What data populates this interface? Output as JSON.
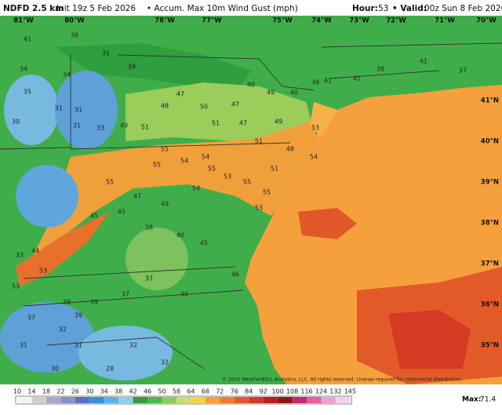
{
  "header": {
    "model": "NDFD 2.5 km",
    "init": "Init 19z 5 Feb 2026",
    "field": "• Accum. Max 10m Wind Gust (mph)",
    "hour_label": "Hour:",
    "hour": 53,
    "valid_label": "• Valid:",
    "valid": "00z Sun 8 Feb 2026"
  },
  "map": {
    "longitudes": [
      "81°W",
      "80°W",
      "78°W",
      "77°W",
      "75°W",
      "74°W",
      "73°W",
      "72°W",
      "71°W",
      "70°W"
    ],
    "latitudes": [
      "41°N",
      "40°N",
      "39°N",
      "38°N",
      "37°N",
      "36°N",
      "35°N"
    ],
    "values": [
      41,
      36,
      31,
      39,
      34,
      35,
      34,
      31,
      31,
      30,
      31,
      33,
      49,
      51,
      48,
      47,
      50,
      47,
      40,
      49,
      40,
      39,
      41,
      41,
      38,
      41,
      37,
      51,
      47,
      51,
      49,
      48,
      51,
      53,
      54,
      55,
      55,
      54,
      54,
      55,
      54,
      53,
      55,
      55,
      53,
      55,
      47,
      45,
      45,
      49,
      38,
      40,
      45,
      46,
      44,
      33,
      53,
      53,
      39,
      39,
      39,
      37,
      37,
      40,
      37,
      32,
      31,
      31,
      32,
      30,
      28,
      32
    ],
    "copyright": "© 2026 WeatherBELL Analytics, LLC. All rights reserved. License required for commercial distribution."
  },
  "legend": {
    "ticks": [
      10,
      14,
      18,
      22,
      26,
      30,
      34,
      38,
      42,
      46,
      50,
      58,
      64,
      68,
      72,
      76,
      84,
      92,
      100,
      108,
      116,
      124,
      132,
      145
    ],
    "max_label": "Max:",
    "max": 71.4
  }
}
